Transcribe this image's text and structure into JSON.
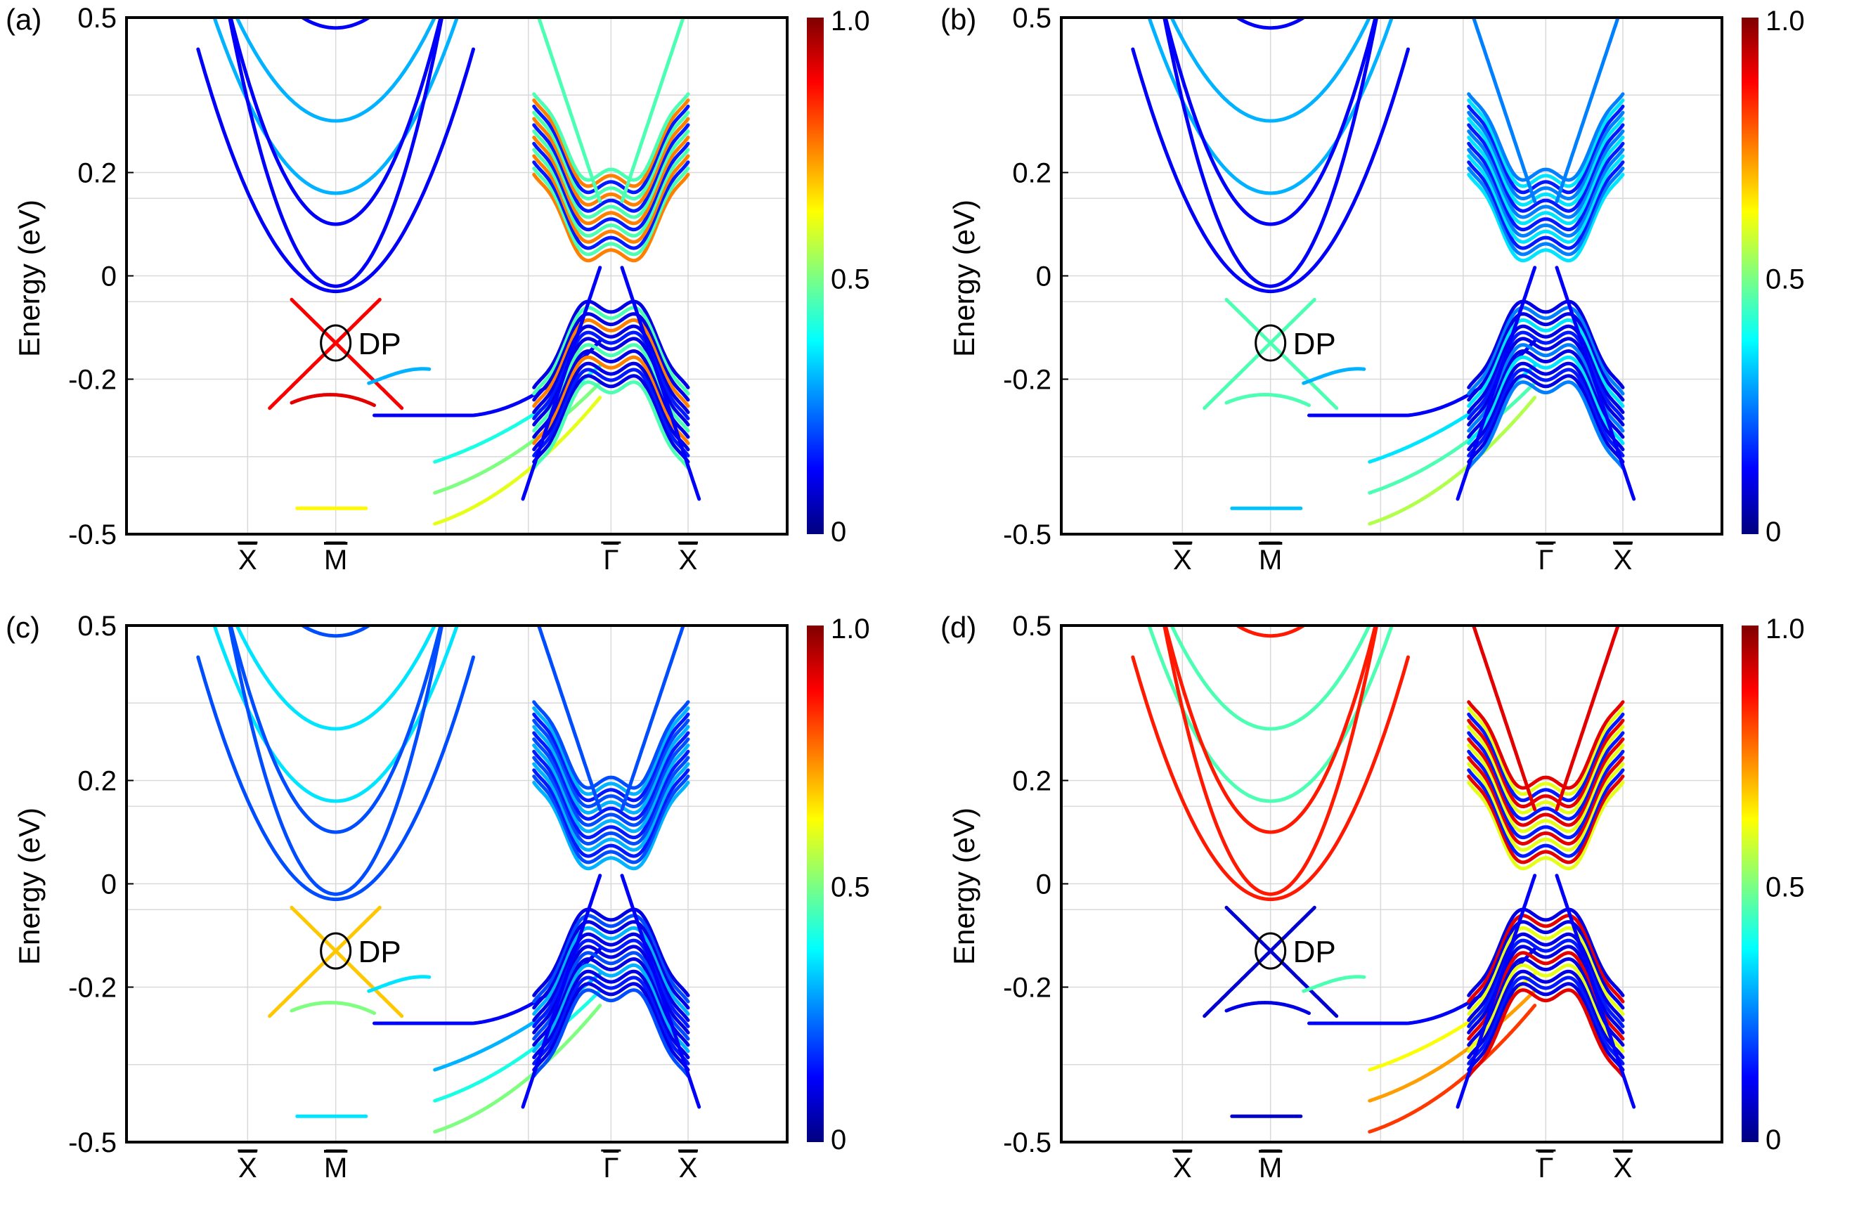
{
  "figure": {
    "ylabel": "Energy (eV)",
    "dp_label": "DP",
    "colorbar_ticks": [
      "1.0",
      "0.5",
      "0"
    ]
  },
  "colors": {
    "colormap": [
      "#00007f",
      "#0000ff",
      "#007fff",
      "#00ffff",
      "#7fff7f",
      "#ffff00",
      "#ff7f00",
      "#ff0000",
      "#7f0000"
    ],
    "grid": "#d9d9d9",
    "axis": "#000000"
  },
  "chart_data": [
    {
      "type": "line",
      "panel_label": "(a)",
      "title": "",
      "xlabel": "",
      "ylabel": "Energy (eV)",
      "ylim": [
        -0.5,
        0.5
      ],
      "yticks": [
        -0.5,
        -0.2,
        0,
        0.2,
        0.5
      ],
      "ytick_labels": [
        "-0.5",
        "-0.2",
        "0",
        "0.2",
        "0.5"
      ],
      "xticks": [
        {
          "label": "X",
          "k": -0.66
        },
        {
          "label": "M",
          "k": -0.5
        },
        {
          "label": "Γ",
          "k": 0.0
        },
        {
          "label": "X",
          "k": 0.14
        }
      ],
      "xlim": [
        -0.88,
        0.32
      ],
      "dirac_point": {
        "k": -0.5,
        "E": -0.13
      },
      "colorbar": {
        "min": 0,
        "max": 1.0,
        "ticks": [
          "1.0",
          "0.5",
          "0"
        ]
      },
      "weights": {
        "dirac": 0.88,
        "m_valence": 0.9,
        "m_conduction": 0.3,
        "m_side": 0.12,
        "gamma_core": 0.75,
        "gamma_side": 0.45,
        "mid_bands": 0.4
      }
    },
    {
      "type": "line",
      "panel_label": "(b)",
      "title": "",
      "xlabel": "",
      "ylabel": "Energy (eV)",
      "ylim": [
        -0.5,
        0.5
      ],
      "yticks": [
        -0.5,
        -0.2,
        0,
        0.2,
        0.5
      ],
      "ytick_labels": [
        "-0.5",
        "-0.2",
        "0",
        "0.2",
        "0.5"
      ],
      "xticks": [
        {
          "label": "X",
          "k": -0.66
        },
        {
          "label": "M",
          "k": -0.5
        },
        {
          "label": "Γ",
          "k": 0.0
        },
        {
          "label": "X",
          "k": 0.14
        }
      ],
      "xlim": [
        -0.88,
        0.32
      ],
      "dirac_point": {
        "k": -0.5,
        "E": -0.13
      },
      "colorbar": {
        "min": 0,
        "max": 1.0,
        "ticks": [
          "1.0",
          "0.5",
          "0"
        ]
      },
      "weights": {
        "dirac": 0.45,
        "m_valence": 0.45,
        "m_conduction": 0.3,
        "m_side": 0.12,
        "gamma_core": 0.35,
        "gamma_side": 0.25,
        "mid_bands": 0.35
      }
    },
    {
      "type": "line",
      "panel_label": "(c)",
      "title": "",
      "xlabel": "",
      "ylabel": "Energy (eV)",
      "ylim": [
        -0.5,
        0.5
      ],
      "yticks": [
        -0.5,
        -0.2,
        0,
        0.2,
        0.5
      ],
      "ytick_labels": [
        "-0.5",
        "-0.2",
        "0",
        "0.2",
        "0.5"
      ],
      "xticks": [
        {
          "label": "X",
          "k": -0.66
        },
        {
          "label": "M",
          "k": -0.5
        },
        {
          "label": "Γ",
          "k": 0.0
        },
        {
          "label": "X",
          "k": 0.14
        }
      ],
      "xlim": [
        -0.88,
        0.32
      ],
      "dirac_point": {
        "k": -0.5,
        "E": -0.13
      },
      "colorbar": {
        "min": 0,
        "max": 1.0,
        "ticks": [
          "1.0",
          "0.5",
          "0"
        ]
      },
      "weights": {
        "dirac": 0.68,
        "m_valence": 0.5,
        "m_conduction": 0.35,
        "m_side": 0.2,
        "gamma_core": 0.3,
        "gamma_side": 0.2,
        "mid_bands": 0.3
      }
    },
    {
      "type": "line",
      "panel_label": "(d)",
      "title": "",
      "xlabel": "",
      "ylabel": "Energy (eV)",
      "ylim": [
        -0.5,
        0.5
      ],
      "yticks": [
        -0.5,
        -0.2,
        0,
        0.2,
        0.5
      ],
      "ytick_labels": [
        "-0.5",
        "-0.2",
        "0",
        "0.2",
        "0.5"
      ],
      "xticks": [
        {
          "label": "X",
          "k": -0.66
        },
        {
          "label": "M",
          "k": -0.5
        },
        {
          "label": "Γ",
          "k": 0.0
        },
        {
          "label": "X",
          "k": 0.14
        }
      ],
      "xlim": [
        -0.88,
        0.32
      ],
      "dirac_point": {
        "k": -0.5,
        "E": -0.13
      },
      "colorbar": {
        "min": 0,
        "max": 1.0,
        "ticks": [
          "1.0",
          "0.5",
          "0"
        ]
      },
      "weights": {
        "dirac": 0.08,
        "m_valence": 0.1,
        "m_conduction": 0.45,
        "m_side": 0.85,
        "gamma_core": 0.6,
        "gamma_side": 0.9,
        "mid_bands": 0.62
      }
    }
  ]
}
